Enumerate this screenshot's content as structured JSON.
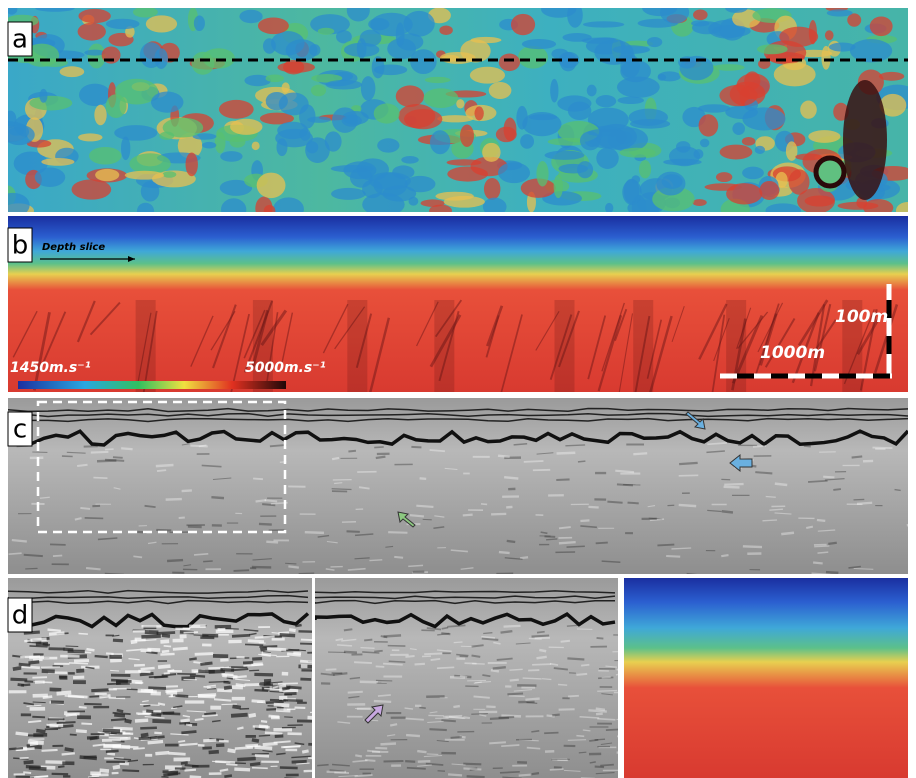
{
  "panels": {
    "a": {
      "label": "a"
    },
    "b": {
      "label": "b",
      "annotation": "Depth slice",
      "colorbar_min": "1450m.s⁻¹",
      "colorbar_max": "5000m.s⁻¹",
      "vertical_scale": "100m",
      "horizontal_scale": "1000m"
    },
    "c": {
      "label": "c"
    },
    "d": {
      "label": "d"
    }
  }
}
